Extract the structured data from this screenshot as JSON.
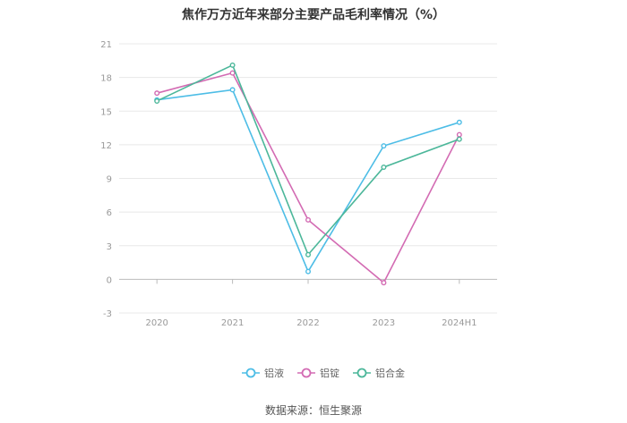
{
  "chart_data": {
    "type": "line",
    "title": "焦作万方近年来部分主要产品毛利率情况（%）",
    "categories": [
      "2020",
      "2021",
      "2022",
      "2023",
      "2024H1"
    ],
    "series": [
      {
        "name": "铝液",
        "color": "#4dbde6",
        "values": [
          16.0,
          16.9,
          0.7,
          11.9,
          14.0
        ]
      },
      {
        "name": "铝锭",
        "color": "#d36bb3",
        "values": [
          16.6,
          18.4,
          5.3,
          -0.3,
          12.9
        ]
      },
      {
        "name": "铝合金",
        "color": "#4cb79a",
        "values": [
          15.9,
          19.1,
          2.2,
          10.0,
          12.5
        ]
      }
    ],
    "yticks": [
      -3,
      0,
      3,
      6,
      9,
      12,
      15,
      18,
      21
    ],
    "ylim": [
      -3,
      21
    ],
    "grid": true,
    "legend_position": "bottom-center"
  },
  "source": "数据来源：恒生聚源"
}
